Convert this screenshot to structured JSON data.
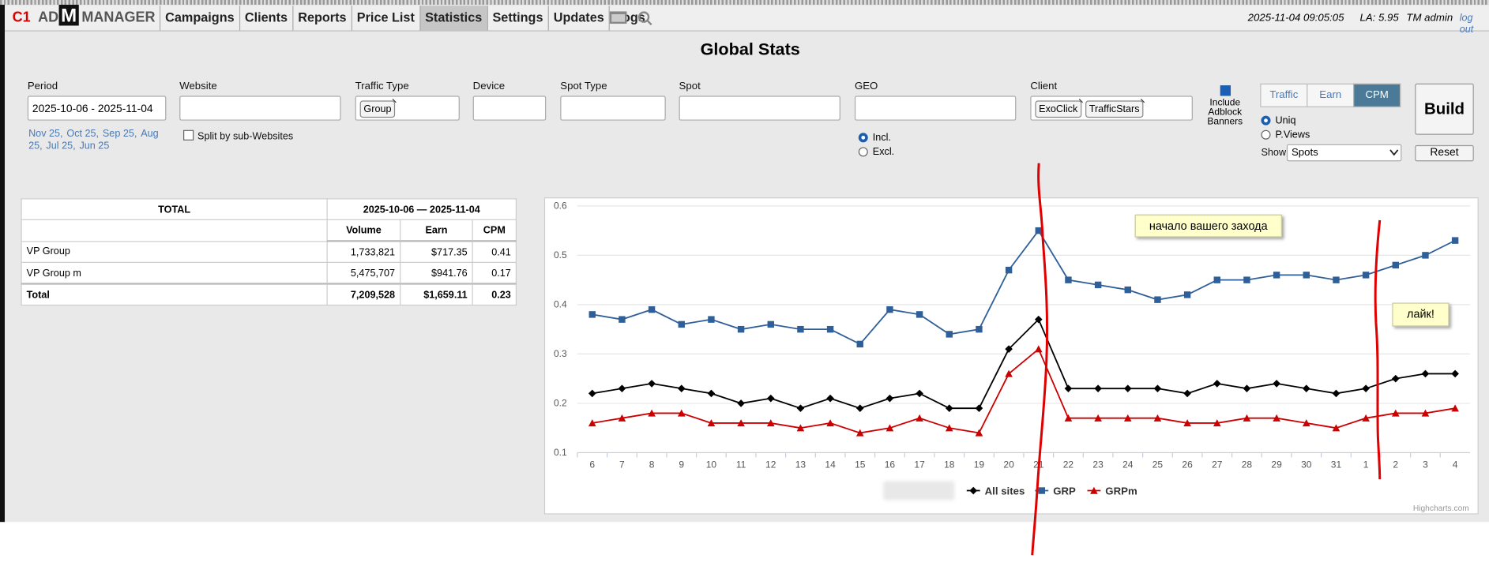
{
  "nav": {
    "logo": {
      "prefix": "C1",
      "brand_a": "AD",
      "brand_m": "M",
      "brand_b": "MANAGER"
    },
    "menu": [
      "Campaigns",
      "Clients",
      "Reports",
      "Price List",
      "Statistics",
      "Settings",
      "Updates",
      "Logs"
    ],
    "active": "Statistics",
    "datetime": "2025-11-04 09:05:05",
    "load": "LA: 5.95",
    "user": "TM admin",
    "logout": "log out"
  },
  "title": "Global Stats",
  "filters": {
    "period": {
      "label": "Period",
      "value": "2025-10-06 - 2025-11-04",
      "quick_links": [
        "Nov 25,",
        "Oct 25,",
        "Sep 25,",
        "Aug 25,",
        "Jul 25,",
        "Jun 25"
      ]
    },
    "website": {
      "label": "Website",
      "split": "Split by sub-Websites"
    },
    "traffic_type": {
      "label": "Traffic Type",
      "tags": [
        "Group"
      ]
    },
    "device": {
      "label": "Device"
    },
    "spot_type": {
      "label": "Spot Type"
    },
    "spot": {
      "label": "Spot"
    },
    "geo": {
      "label": "GEO",
      "options": [
        "Incl.",
        "Excl."
      ]
    },
    "client": {
      "label": "Client",
      "tags": [
        "ExoClick",
        "TrafficStars"
      ]
    },
    "adblock": "Include Adblock Banners",
    "modes": [
      "Traffic",
      "Earn",
      "CPM"
    ],
    "active_mode": "CPM",
    "count": [
      "Uniq",
      "P.Views"
    ],
    "show": {
      "label": "Show",
      "value": "Spots"
    },
    "build": "Build",
    "reset": "Reset"
  },
  "table": {
    "header": [
      "TOTAL",
      "2025-10-06 — 2025-11-04"
    ],
    "columns": [
      "Volume",
      "Earn",
      "CPM"
    ],
    "rows": [
      [
        "VP Group",
        "1,733,821",
        "$717.35",
        "0.41"
      ],
      [
        "VP Group m",
        "5,475,707",
        "$941.76",
        "0.17"
      ],
      [
        "Total",
        "7,209,528",
        "$1,659.11",
        "0.23"
      ]
    ]
  },
  "chart_data": {
    "type": "line",
    "categories": [
      "6",
      "7",
      "8",
      "9",
      "10",
      "11",
      "12",
      "13",
      "14",
      "15",
      "16",
      "17",
      "18",
      "19",
      "20",
      "21",
      "22",
      "23",
      "24",
      "25",
      "26",
      "27",
      "28",
      "29",
      "30",
      "31",
      "1",
      "2",
      "3",
      "4"
    ],
    "ylim": [
      0.1,
      0.6
    ],
    "yticks": [
      0.1,
      0.2,
      0.3,
      0.4,
      0.5,
      0.6
    ],
    "grid": true,
    "series": [
      {
        "name": "All sites",
        "color": "#000000",
        "marker": "diamond",
        "values": [
          0.22,
          0.23,
          0.24,
          0.23,
          0.22,
          0.2,
          0.21,
          0.19,
          0.21,
          0.19,
          0.21,
          0.22,
          0.19,
          0.19,
          0.31,
          0.37,
          0.23,
          0.23,
          0.23,
          0.23,
          0.22,
          0.24,
          0.23,
          0.24,
          0.23,
          0.22,
          0.23,
          0.25,
          0.26,
          0.26
        ]
      },
      {
        "name": "GRP",
        "color": "#2f5f98",
        "marker": "square",
        "values": [
          0.38,
          0.37,
          0.39,
          0.36,
          0.37,
          0.35,
          0.36,
          0.35,
          0.35,
          0.32,
          0.39,
          0.38,
          0.34,
          0.35,
          0.47,
          0.55,
          0.45,
          0.44,
          0.43,
          0.41,
          0.42,
          0.45,
          0.45,
          0.46,
          0.46,
          0.45,
          0.46,
          0.48,
          0.5,
          0.53
        ]
      },
      {
        "name": "GRPm",
        "color": "#cc0000",
        "marker": "triangle",
        "values": [
          0.16,
          0.17,
          0.18,
          0.18,
          0.16,
          0.16,
          0.16,
          0.15,
          0.16,
          0.14,
          0.15,
          0.17,
          0.15,
          0.14,
          0.26,
          0.31,
          0.17,
          0.17,
          0.17,
          0.17,
          0.16,
          0.16,
          0.17,
          0.17,
          0.16,
          0.15,
          0.17,
          0.18,
          0.18,
          0.19
        ]
      }
    ],
    "annotations": [
      "начало вашего захода",
      "лайк!"
    ],
    "credits": "Highcharts.com"
  }
}
